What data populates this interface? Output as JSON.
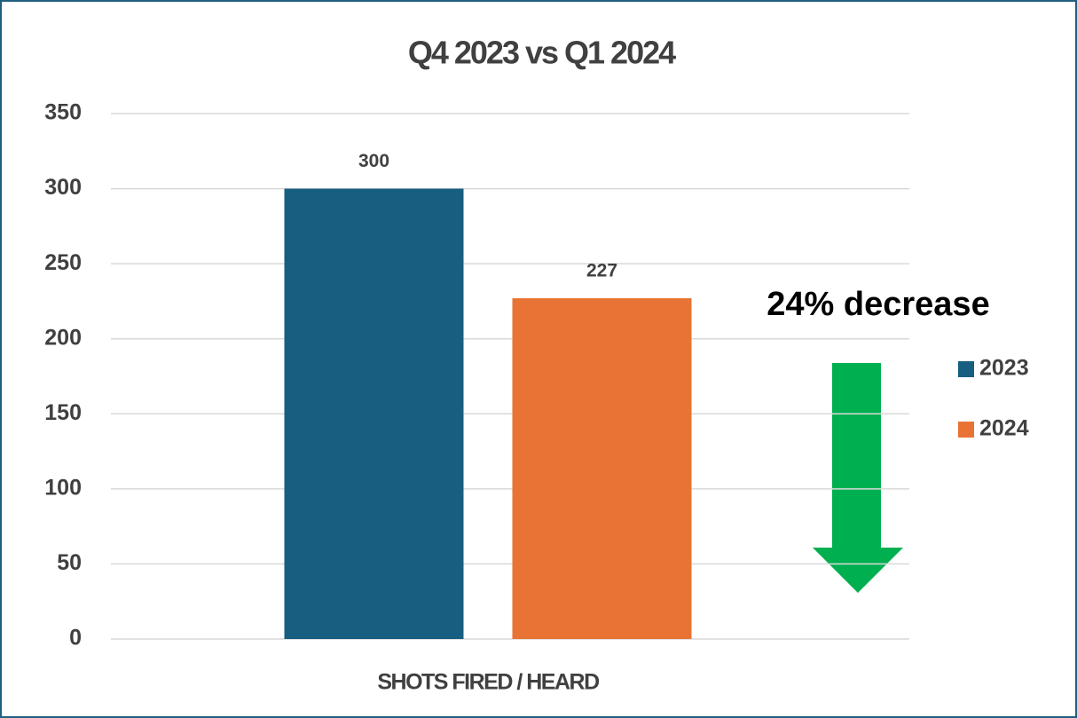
{
  "chart_data": {
    "type": "bar",
    "title": "Q4 2023 vs Q1 2024",
    "categories": [
      "SHOTS FIRED / HEARD"
    ],
    "series": [
      {
        "name": "2023",
        "color": "#175e80",
        "values": [
          300
        ]
      },
      {
        "name": "2024",
        "color": "#e87334",
        "values": [
          227
        ]
      }
    ],
    "ylim": [
      0,
      350
    ],
    "yticks": [
      0,
      50,
      100,
      150,
      200,
      250,
      300,
      350
    ],
    "grid": true,
    "legend": "right",
    "annotations": [
      "24% decrease"
    ]
  }
}
